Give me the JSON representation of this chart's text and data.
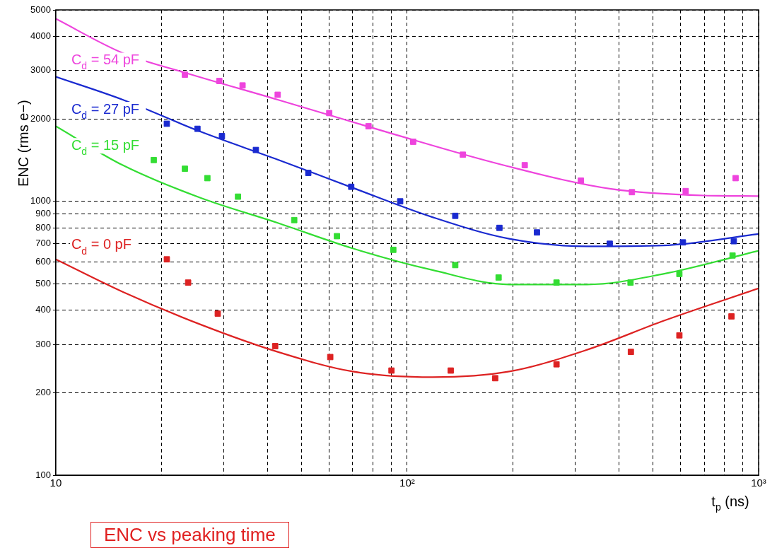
{
  "chart_data": {
    "type": "scatter",
    "xlabel": "t$_{p}$ (ns)",
    "ylabel": "ENC (rms e−)",
    "annotations": [
      "ENC vs peaking time"
    ],
    "log": "xy",
    "grid": true,
    "legend": false,
    "marker": "square",
    "xlim": [
      10,
      1000
    ],
    "xticks": [
      10,
      {
        "value": 20,
        "label": null
      },
      {
        "value": 30,
        "label": null
      },
      {
        "value": 40,
        "label": null
      },
      {
        "value": 50,
        "label": null
      },
      {
        "value": 60,
        "label": null
      },
      {
        "value": 70,
        "label": null
      },
      {
        "value": 80,
        "label": null
      },
      {
        "value": 90,
        "label": null
      },
      {
        "value": 100,
        "label": "10²"
      },
      {
        "value": 200,
        "label": null
      },
      {
        "value": 300,
        "label": null
      },
      {
        "value": 400,
        "label": null
      },
      {
        "value": 500,
        "label": null
      },
      {
        "value": 600,
        "label": null
      },
      {
        "value": 700,
        "label": null
      },
      {
        "value": 800,
        "label": null
      },
      {
        "value": 900,
        "label": null
      },
      {
        "value": 1000,
        "label": "10³"
      }
    ],
    "ylim": [
      100,
      5000
    ],
    "yticks": [
      100,
      200,
      300,
      400,
      500,
      600,
      700,
      800,
      900,
      1000,
      2000,
      3000,
      4000,
      5000
    ],
    "series": [
      {
        "name": "C$_{d}$ = 54 pF",
        "color": "#ee44dd",
        "x": [
          23.3,
          29.2,
          34,
          42.8,
          60,
          77.6,
          104,
          144,
          216,
          312,
          436,
          620,
          860
        ],
        "values": [
          2900,
          2750,
          2650,
          2450,
          2100,
          1880,
          1650,
          1480,
          1355,
          1190,
          1080,
          1090,
          1215
        ]
      },
      {
        "type": "line",
        "marker": "none",
        "color": "#ee44dd",
        "x": [
          10,
          15.5,
          23.3,
          42.8,
          90,
          186,
          380,
          700,
          1000
        ],
        "values": [
          4640,
          3480,
          2950,
          2350,
          1770,
          1360,
          1110,
          1050,
          1045
        ]
      },
      {
        "name": "C$_{d}$ = 27 pF",
        "color": "#1a2ad0",
        "x": [
          20.7,
          25.3,
          29.7,
          37.1,
          52.3,
          69.3,
          95.5,
          137,
          183,
          234,
          377,
          609,
          850
        ],
        "values": [
          1920,
          1840,
          1730,
          1540,
          1270,
          1130,
          1000,
          885,
          800,
          770,
          700,
          708,
          715
        ]
      },
      {
        "type": "line",
        "marker": "none",
        "color": "#1a2ad0",
        "x": [
          10,
          15.5,
          25.7,
          42.8,
          70,
          118,
          195,
          325,
          536,
          1000
        ],
        "values": [
          2850,
          2350,
          1800,
          1420,
          1120,
          875,
          730,
          685,
          690,
          760
        ]
      },
      {
        "name": "C$_{d}$ = 15 pF",
        "color": "#33dd33",
        "x": [
          19,
          23.3,
          27,
          33,
          47.7,
          63.1,
          91.3,
          137,
          182,
          266,
          432,
          595,
          843
        ],
        "values": [
          1415,
          1315,
          1215,
          1040,
          854,
          746,
          665,
          585,
          527,
          505,
          505,
          543,
          634
        ]
      },
      {
        "type": "line",
        "marker": "none",
        "color": "#33dd33",
        "x": [
          10,
          15.5,
          25.8,
          42.8,
          70,
          118,
          195,
          325,
          536,
          1000
        ],
        "values": [
          1880,
          1355,
          1030,
          834,
          673,
          561,
          497,
          497,
          543,
          660
        ]
      },
      {
        "name": "C$_{d}$ = 0 pF",
        "color": "#dd2222",
        "x": [
          20.7,
          23.8,
          28.9,
          42.1,
          60.4,
          90.2,
          133,
          178,
          266,
          433,
          595,
          837
        ],
        "values": [
          614,
          505,
          389,
          296,
          270,
          241,
          241,
          226,
          254,
          282,
          324,
          380
        ]
      },
      {
        "type": "line",
        "marker": "none",
        "color": "#dd2222",
        "x": [
          10,
          15.5,
          25.8,
          42.8,
          70,
          118,
          195,
          325,
          536,
          1000
        ],
        "values": [
          614,
          467,
          355,
          282,
          239,
          228,
          239,
          287,
          366,
          481
        ]
      }
    ]
  }
}
